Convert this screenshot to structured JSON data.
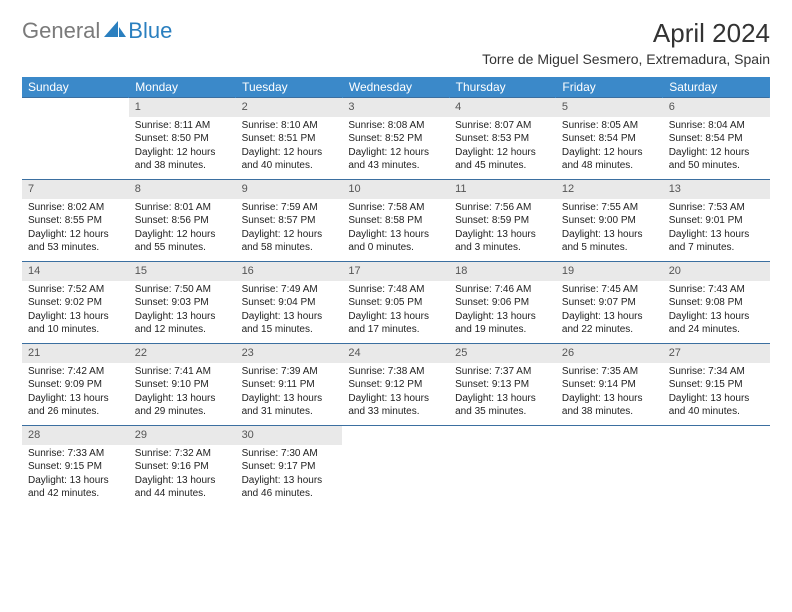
{
  "brand": {
    "gray": "General",
    "blue": "Blue"
  },
  "title": "April 2024",
  "location": "Torre de Miguel Sesmero, Extremadura, Spain",
  "colors": {
    "header_bg": "#3b89c9",
    "header_text": "#ffffff",
    "daynum_bg": "#e9e9e9",
    "row_border": "#3b6fa0",
    "logo_gray": "#7a7a7a",
    "logo_blue": "#2a7fbf"
  },
  "weekdays": [
    "Sunday",
    "Monday",
    "Tuesday",
    "Wednesday",
    "Thursday",
    "Friday",
    "Saturday"
  ],
  "weeks": [
    [
      null,
      {
        "n": "1",
        "sr": "8:11 AM",
        "ss": "8:50 PM",
        "dl": "12 hours and 38 minutes."
      },
      {
        "n": "2",
        "sr": "8:10 AM",
        "ss": "8:51 PM",
        "dl": "12 hours and 40 minutes."
      },
      {
        "n": "3",
        "sr": "8:08 AM",
        "ss": "8:52 PM",
        "dl": "12 hours and 43 minutes."
      },
      {
        "n": "4",
        "sr": "8:07 AM",
        "ss": "8:53 PM",
        "dl": "12 hours and 45 minutes."
      },
      {
        "n": "5",
        "sr": "8:05 AM",
        "ss": "8:54 PM",
        "dl": "12 hours and 48 minutes."
      },
      {
        "n": "6",
        "sr": "8:04 AM",
        "ss": "8:54 PM",
        "dl": "12 hours and 50 minutes."
      }
    ],
    [
      {
        "n": "7",
        "sr": "8:02 AM",
        "ss": "8:55 PM",
        "dl": "12 hours and 53 minutes."
      },
      {
        "n": "8",
        "sr": "8:01 AM",
        "ss": "8:56 PM",
        "dl": "12 hours and 55 minutes."
      },
      {
        "n": "9",
        "sr": "7:59 AM",
        "ss": "8:57 PM",
        "dl": "12 hours and 58 minutes."
      },
      {
        "n": "10",
        "sr": "7:58 AM",
        "ss": "8:58 PM",
        "dl": "13 hours and 0 minutes."
      },
      {
        "n": "11",
        "sr": "7:56 AM",
        "ss": "8:59 PM",
        "dl": "13 hours and 3 minutes."
      },
      {
        "n": "12",
        "sr": "7:55 AM",
        "ss": "9:00 PM",
        "dl": "13 hours and 5 minutes."
      },
      {
        "n": "13",
        "sr": "7:53 AM",
        "ss": "9:01 PM",
        "dl": "13 hours and 7 minutes."
      }
    ],
    [
      {
        "n": "14",
        "sr": "7:52 AM",
        "ss": "9:02 PM",
        "dl": "13 hours and 10 minutes."
      },
      {
        "n": "15",
        "sr": "7:50 AM",
        "ss": "9:03 PM",
        "dl": "13 hours and 12 minutes."
      },
      {
        "n": "16",
        "sr": "7:49 AM",
        "ss": "9:04 PM",
        "dl": "13 hours and 15 minutes."
      },
      {
        "n": "17",
        "sr": "7:48 AM",
        "ss": "9:05 PM",
        "dl": "13 hours and 17 minutes."
      },
      {
        "n": "18",
        "sr": "7:46 AM",
        "ss": "9:06 PM",
        "dl": "13 hours and 19 minutes."
      },
      {
        "n": "19",
        "sr": "7:45 AM",
        "ss": "9:07 PM",
        "dl": "13 hours and 22 minutes."
      },
      {
        "n": "20",
        "sr": "7:43 AM",
        "ss": "9:08 PM",
        "dl": "13 hours and 24 minutes."
      }
    ],
    [
      {
        "n": "21",
        "sr": "7:42 AM",
        "ss": "9:09 PM",
        "dl": "13 hours and 26 minutes."
      },
      {
        "n": "22",
        "sr": "7:41 AM",
        "ss": "9:10 PM",
        "dl": "13 hours and 29 minutes."
      },
      {
        "n": "23",
        "sr": "7:39 AM",
        "ss": "9:11 PM",
        "dl": "13 hours and 31 minutes."
      },
      {
        "n": "24",
        "sr": "7:38 AM",
        "ss": "9:12 PM",
        "dl": "13 hours and 33 minutes."
      },
      {
        "n": "25",
        "sr": "7:37 AM",
        "ss": "9:13 PM",
        "dl": "13 hours and 35 minutes."
      },
      {
        "n": "26",
        "sr": "7:35 AM",
        "ss": "9:14 PM",
        "dl": "13 hours and 38 minutes."
      },
      {
        "n": "27",
        "sr": "7:34 AM",
        "ss": "9:15 PM",
        "dl": "13 hours and 40 minutes."
      }
    ],
    [
      {
        "n": "28",
        "sr": "7:33 AM",
        "ss": "9:15 PM",
        "dl": "13 hours and 42 minutes."
      },
      {
        "n": "29",
        "sr": "7:32 AM",
        "ss": "9:16 PM",
        "dl": "13 hours and 44 minutes."
      },
      {
        "n": "30",
        "sr": "7:30 AM",
        "ss": "9:17 PM",
        "dl": "13 hours and 46 minutes."
      },
      null,
      null,
      null,
      null
    ]
  ],
  "labels": {
    "sunrise": "Sunrise:",
    "sunset": "Sunset:",
    "daylight": "Daylight:"
  }
}
